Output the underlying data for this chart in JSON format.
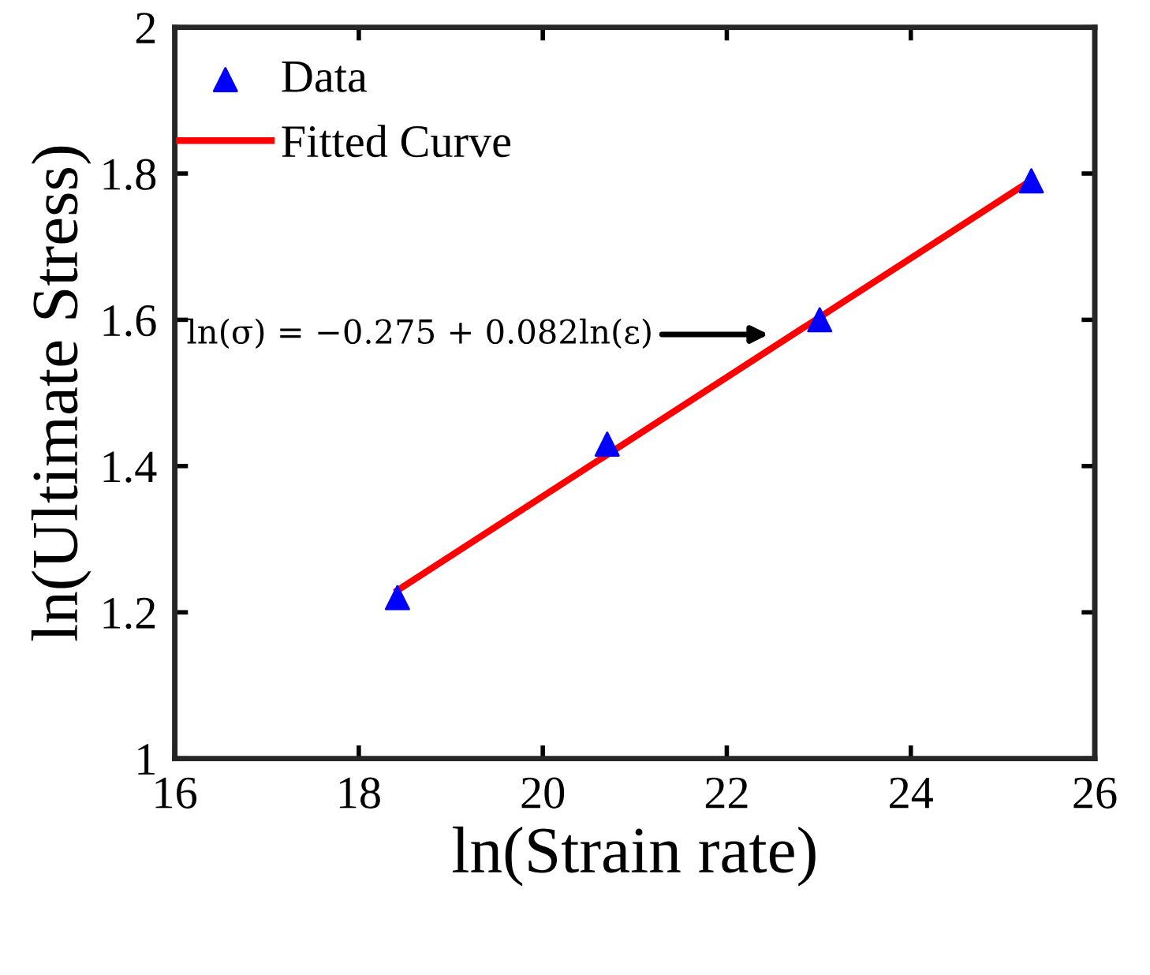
{
  "chart_data": {
    "type": "scatter",
    "xlabel": "ln(Strain rate)",
    "ylabel": "ln(Ultimate Stress)",
    "xlim": [
      16,
      26
    ],
    "xticks": [
      16,
      18,
      20,
      22,
      24,
      26
    ],
    "ylim": [
      1,
      2
    ],
    "yticks": [
      1,
      {
        "value": 1.2,
        "label": "1.2"
      },
      {
        "value": 1.4,
        "label": "1.4"
      },
      {
        "value": 1.6,
        "label": "1.6"
      },
      {
        "value": 1.8,
        "label": "1.8"
      },
      2
    ],
    "series": [
      {
        "name": "Data",
        "marker": "triangle",
        "color": "#0000ff",
        "x": [
          18.42,
          20.7,
          23.01,
          25.31
        ],
        "values": [
          1.22,
          1.43,
          1.6,
          1.79
        ]
      },
      {
        "name": "Fitted Curve",
        "type": "line",
        "marker": "none",
        "line_style": "solid",
        "color": "#ff0000",
        "x": [
          18.42,
          25.3
        ],
        "values": [
          1.23,
          1.79
        ]
      }
    ],
    "annotations": [
      "ln(σ) = −0.275 + 0.082ln(ε)"
    ],
    "legend": "top left",
    "grid": false
  }
}
